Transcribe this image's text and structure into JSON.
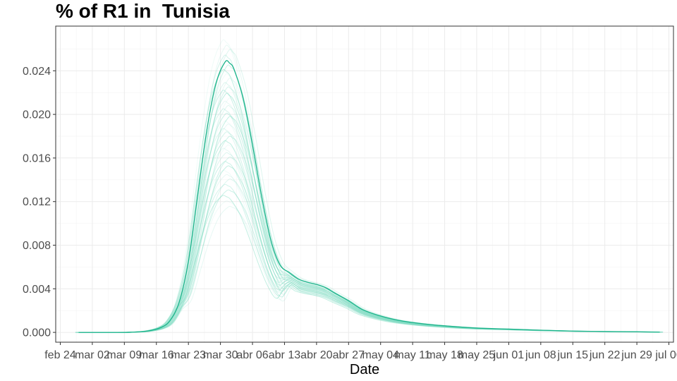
{
  "chart_data": {
    "type": "line",
    "title": "% of R1 in  Tunisia",
    "xlabel": "Date",
    "ylabel": "",
    "x_axis_type": "date",
    "x_ticks": [
      {
        "date": "2020-02-24",
        "label": "feb 24"
      },
      {
        "date": "2020-03-02",
        "label": "mar 02"
      },
      {
        "date": "2020-03-09",
        "label": "mar 09"
      },
      {
        "date": "2020-03-16",
        "label": "mar 16"
      },
      {
        "date": "2020-03-23",
        "label": "mar 23"
      },
      {
        "date": "2020-03-30",
        "label": "mar 30"
      },
      {
        "date": "2020-04-06",
        "label": "abr 06"
      },
      {
        "date": "2020-04-13",
        "label": "abr 13"
      },
      {
        "date": "2020-04-20",
        "label": "abr 20"
      },
      {
        "date": "2020-04-27",
        "label": "abr 27"
      },
      {
        "date": "2020-05-04",
        "label": "may 04"
      },
      {
        "date": "2020-05-11",
        "label": "may 11"
      },
      {
        "date": "2020-05-18",
        "label": "may 18"
      },
      {
        "date": "2020-05-25",
        "label": "may 25"
      },
      {
        "date": "2020-06-01",
        "label": "jun 01"
      },
      {
        "date": "2020-06-08",
        "label": "jun 08"
      },
      {
        "date": "2020-06-15",
        "label": "jun 15"
      },
      {
        "date": "2020-06-22",
        "label": "jun 22"
      },
      {
        "date": "2020-06-29",
        "label": "jun 29"
      },
      {
        "date": "2020-07-06",
        "label": "jul 06"
      }
    ],
    "xlim": [
      "2020-02-23",
      "2020-07-07"
    ],
    "y_ticks": [
      0.0,
      0.004,
      0.008,
      0.012,
      0.016,
      0.02,
      0.024
    ],
    "y_tick_labels": [
      "0.000",
      "0.004",
      "0.008",
      "0.012",
      "0.016",
      "0.020",
      "0.024"
    ],
    "ylim": [
      -0.0009,
      0.0281
    ],
    "grid": true,
    "legend": "none",
    "main_color": "#1bb38a",
    "ensemble_color": "#7fdcc2",
    "main_series": {
      "x": [
        "2020-02-28",
        "2020-03-05",
        "2020-03-10",
        "2020-03-14",
        "2020-03-17",
        "2020-03-19",
        "2020-03-21",
        "2020-03-23",
        "2020-03-25",
        "2020-03-27",
        "2020-03-29",
        "2020-03-31",
        "2020-04-01",
        "2020-04-02",
        "2020-04-04",
        "2020-04-06",
        "2020-04-08",
        "2020-04-10",
        "2020-04-12",
        "2020-04-14",
        "2020-04-16",
        "2020-04-18",
        "2020-04-20",
        "2020-04-22",
        "2020-04-24",
        "2020-04-27",
        "2020-04-30",
        "2020-05-04",
        "2020-05-08",
        "2020-05-13",
        "2020-05-18",
        "2020-05-25",
        "2020-06-01",
        "2020-06-08",
        "2020-06-15",
        "2020-06-22",
        "2020-06-29",
        "2020-07-04"
      ],
      "y": [
        0.0,
        0.0,
        1e-05,
        0.00012,
        0.00045,
        0.0011,
        0.0028,
        0.0065,
        0.0125,
        0.0185,
        0.0228,
        0.0248,
        0.0247,
        0.0241,
        0.0214,
        0.0172,
        0.0125,
        0.0085,
        0.0062,
        0.0055,
        0.0049,
        0.0046,
        0.0044,
        0.0041,
        0.0036,
        0.0029,
        0.0021,
        0.0015,
        0.0011,
        0.0008,
        0.0006,
        0.0004,
        0.0003,
        0.0002,
        0.00012,
        8e-05,
        5e-05,
        3e-05
      ]
    },
    "ensemble_peaks": [
      0.0267,
      0.0262,
      0.0258,
      0.0253,
      0.0244,
      0.024,
      0.0236,
      0.0232,
      0.0228,
      0.0224,
      0.0221,
      0.0218,
      0.0214,
      0.0211,
      0.0207,
      0.0204,
      0.02,
      0.0197,
      0.0193,
      0.019,
      0.0186,
      0.0183,
      0.0179,
      0.0175,
      0.0171,
      0.0168,
      0.0164,
      0.016,
      0.0156,
      0.0152,
      0.0148,
      0.0144,
      0.014,
      0.0135,
      0.013,
      0.0125,
      0.012,
      0.0115
    ]
  }
}
